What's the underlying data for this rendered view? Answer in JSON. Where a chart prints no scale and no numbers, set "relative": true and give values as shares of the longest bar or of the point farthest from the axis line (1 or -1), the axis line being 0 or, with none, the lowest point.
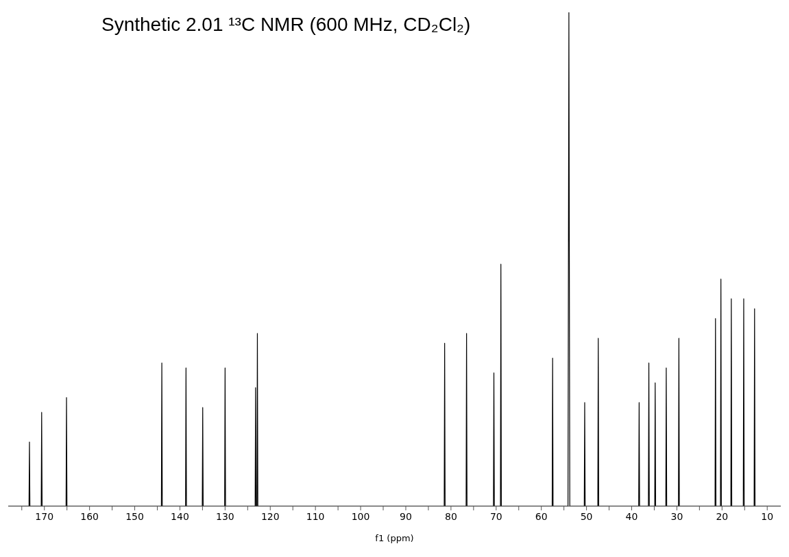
{
  "chart_data": {
    "type": "line",
    "relative": true,
    "title": "Synthetic 2.01 ¹³C NMR (600 MHz, CD₂Cl₂)",
    "xlabel": "f1 (ppm)",
    "xlim": [
      178,
      7
    ],
    "xticks": [
      170,
      {
        "value": 175,
        "label": null
      },
      {
        "value": 165,
        "label": null
      },
      160,
      {
        "value": 155,
        "label": null
      },
      150,
      {
        "value": 145,
        "label": null
      },
      140,
      {
        "value": 135,
        "label": null
      },
      130,
      {
        "value": 125,
        "label": null
      },
      120,
      {
        "value": 115,
        "label": null
      },
      110,
      {
        "value": 105,
        "label": null
      },
      100,
      {
        "value": 95,
        "label": null
      },
      90,
      {
        "value": 85,
        "label": null
      },
      80,
      {
        "value": 75,
        "label": null
      },
      70,
      {
        "value": 65,
        "label": null
      },
      60,
      {
        "value": 55,
        "label": null
      },
      50,
      {
        "value": 45,
        "label": null
      },
      40,
      {
        "value": 35,
        "label": null
      },
      30,
      {
        "value": 25,
        "label": null
      },
      20,
      {
        "value": 15,
        "label": null
      },
      10
    ],
    "series": [
      {
        "color": "#000000",
        "x": [
          178,
          173.4,
          173.3,
          173.2,
          170.7,
          170.6,
          170.5,
          165.2,
          165.1,
          165.0,
          144.1,
          144.0,
          143.9,
          138.75,
          138.65,
          138.55,
          135.05,
          134.95,
          134.85,
          130.1,
          130.0,
          129.9,
          123.35,
          123.25,
          123.15,
          122.95,
          122.85,
          122.75,
          81.5,
          81.4,
          81.3,
          76.65,
          76.55,
          76.45,
          70.6,
          70.5,
          70.4,
          69.05,
          68.95,
          68.85,
          57.6,
          57.5,
          57.4,
          54.1,
          53.9,
          53.7,
          50.5,
          50.4,
          50.3,
          47.5,
          47.4,
          47.3,
          38.45,
          38.35,
          38.25,
          36.3,
          36.2,
          36.1,
          34.9,
          34.8,
          34.7,
          32.45,
          32.35,
          32.25,
          29.65,
          29.55,
          29.45,
          21.55,
          21.45,
          21.35,
          20.35,
          20.25,
          20.15,
          18.05,
          17.95,
          17.85,
          15.3,
          15.2,
          15.1,
          12.9,
          12.8,
          12.7,
          7
        ],
        "values": [
          0,
          0,
          0.13,
          0,
          0,
          0.19,
          0,
          0,
          0.22,
          0,
          0,
          0.29,
          0,
          0,
          0.28,
          0,
          0,
          0.2,
          0,
          0,
          0.28,
          0,
          0,
          0.24,
          0,
          0,
          0.35,
          0,
          0,
          0.33,
          0,
          0,
          0.35,
          0,
          0,
          0.27,
          0,
          0,
          0.49,
          0,
          0,
          0.3,
          0,
          0,
          1,
          0,
          0,
          0.21,
          0,
          0,
          0.34,
          0,
          0,
          0.21,
          0,
          0,
          0.29,
          0,
          0,
          0.25,
          0,
          0,
          0.28,
          0,
          0,
          0.34,
          0,
          0,
          0.38,
          0,
          0,
          0.46,
          0,
          0,
          0.42,
          0,
          0,
          0.42,
          0,
          0,
          0.4,
          0,
          0
        ]
      }
    ]
  }
}
